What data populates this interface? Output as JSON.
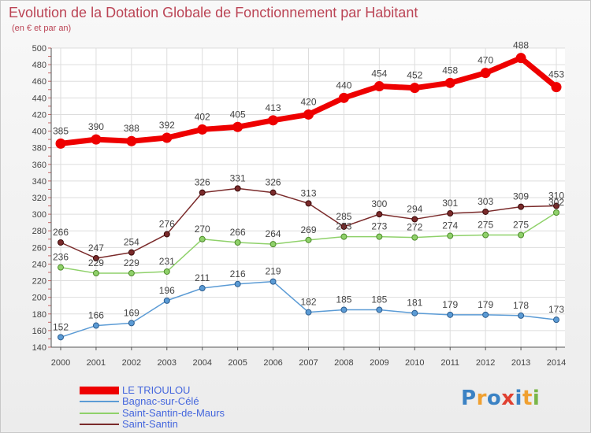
{
  "title": "Evolution de la Dotation Globale de Fonctionnement par Habitant",
  "subtitle": "(en € et par an)",
  "logo": {
    "text": "Proxiti",
    "colors": [
      "#3b82c4",
      "#f0a030",
      "#3b82c4",
      "#e04030",
      "#3b82c4",
      "#f0a030",
      "#7ab648"
    ]
  },
  "chart_data": {
    "type": "line",
    "x": [
      2000,
      2001,
      2002,
      2003,
      2004,
      2005,
      2006,
      2007,
      2008,
      2009,
      2010,
      2011,
      2012,
      2013,
      2014
    ],
    "ylim": [
      140,
      500
    ],
    "yticks": [
      140,
      160,
      180,
      200,
      220,
      240,
      260,
      280,
      300,
      320,
      340,
      360,
      380,
      400,
      420,
      440,
      460,
      480,
      500
    ],
    "grid": true,
    "legend_position": "bottom-left",
    "series": [
      {
        "name": "LE TRIOULOU",
        "color": "#ee0000",
        "values": [
          385,
          390,
          388,
          392,
          402,
          405,
          413,
          420,
          440,
          454,
          452,
          458,
          470,
          488,
          453
        ]
      },
      {
        "name": "Bagnac-sur-Célé",
        "color": "#5b9bd5",
        "values": [
          152,
          166,
          169,
          196,
          211,
          216,
          219,
          182,
          185,
          185,
          181,
          179,
          179,
          178,
          173
        ]
      },
      {
        "name": "Saint-Santin-de-Maurs",
        "color": "#8fd16a",
        "values": [
          236,
          229,
          229,
          231,
          270,
          266,
          264,
          269,
          273,
          273,
          272,
          274,
          275,
          275,
          302
        ]
      },
      {
        "name": "Saint-Santin",
        "color": "#7a2a2a",
        "values": [
          266,
          247,
          254,
          276,
          326,
          331,
          326,
          313,
          285,
          300,
          294,
          301,
          303,
          309,
          310
        ]
      }
    ]
  }
}
